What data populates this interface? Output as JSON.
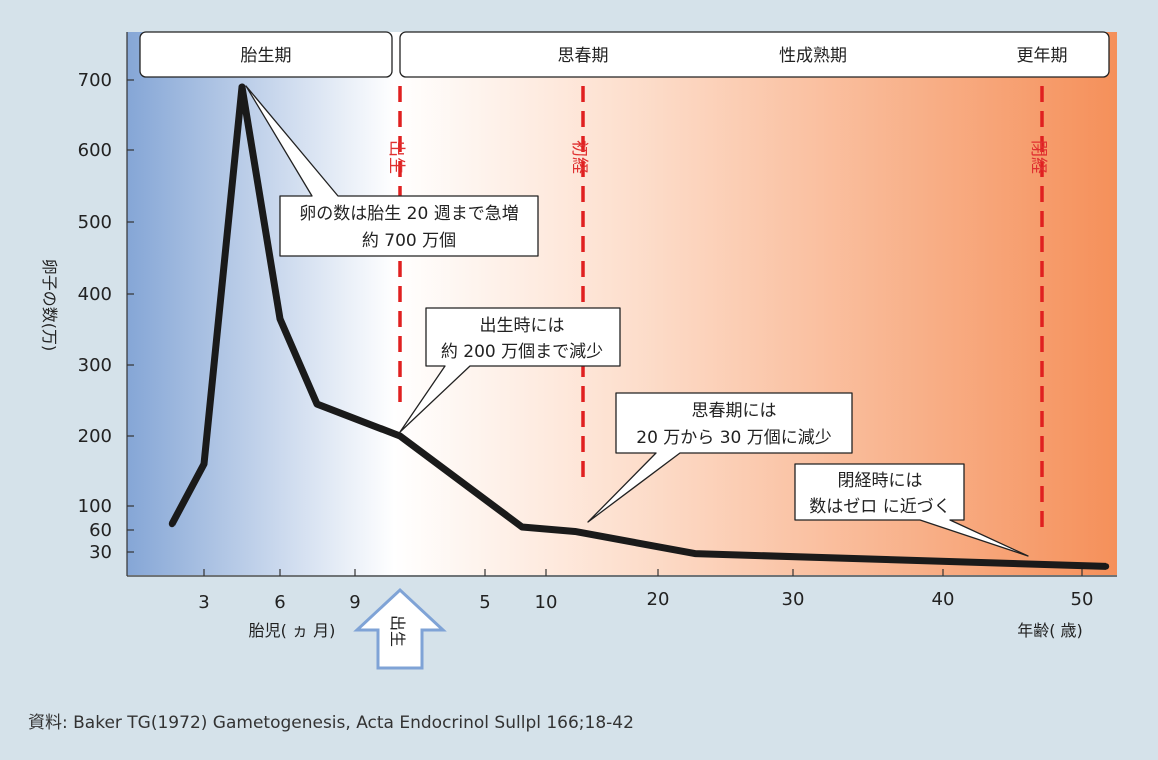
{
  "chart_data": {
    "type": "line",
    "ylabel": "卵子の数(万)",
    "y_ticks": [
      "700",
      "600",
      "500",
      "400",
      "300",
      "200",
      "100",
      "60",
      "30"
    ],
    "fetal_x_ticks": [
      "3",
      "6",
      "9"
    ],
    "fetal_axis_label": "胎児( ヵ 月)",
    "age_x_ticks": [
      "5",
      "10",
      "20",
      "30",
      "40",
      "50"
    ],
    "age_axis_label": "年齢( 歳)",
    "birth_marker": "出生",
    "phases": [
      "胎生期",
      "思春期",
      "性成熟期",
      "更年期"
    ],
    "events": [
      "出生",
      "初経",
      "閉経"
    ],
    "callouts": [
      [
        "卵の数は胎生 20 週まで急増",
        "約 700 万個"
      ],
      [
        "出生時には",
        "約 200 万個まで減少"
      ],
      [
        "思春期には",
        "20 万から 30 万個に減少"
      ],
      [
        "閉経時には",
        "数はゼロ に近づく"
      ]
    ],
    "series": [
      {
        "points": [
          {
            "x": "胎児 2ヵ月",
            "y": 70
          },
          {
            "x": "胎児 3ヵ月",
            "y": 160
          },
          {
            "x": "胎児 5ヵ月",
            "y": 690
          },
          {
            "x": "胎児 6ヵ月",
            "y": 365
          },
          {
            "x": "胎児 7ヵ月",
            "y": 245
          },
          {
            "x": "出生",
            "y": 200
          },
          {
            "x": "8歳",
            "y": 65
          },
          {
            "x": "13歳",
            "y": 58
          },
          {
            "x": "23歳",
            "y": 28
          },
          {
            "x": "51歳",
            "y": 12
          }
        ]
      }
    ]
  },
  "source": "資料: Baker TG(1972) Gametogenesis, Acta Endocrinol Sullpl 166;18-42"
}
